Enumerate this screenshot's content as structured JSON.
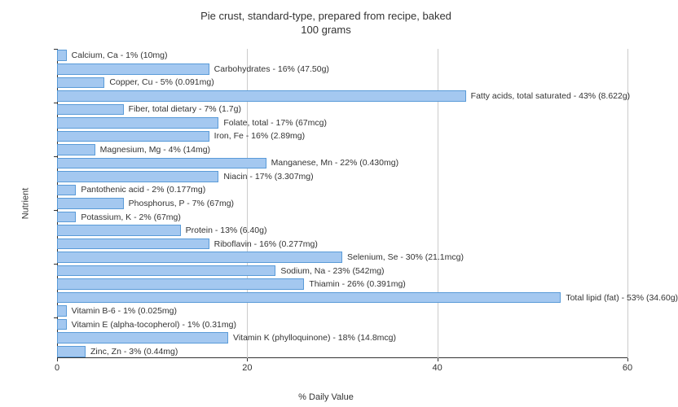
{
  "title_line1": "Pie crust, standard-type, prepared from recipe, baked",
  "title_line2": "100 grams",
  "y_axis_label": "Nutrient",
  "x_axis_label": "% Daily Value",
  "x_ticks": [
    0,
    20,
    40,
    60
  ],
  "x_max": 60,
  "bar_color": "#a4c8f0",
  "bar_border_color": "#5a9bd8",
  "grid_color": "#cccccc",
  "background_color": "#ffffff",
  "label_fontsize": 10.5,
  "title_fontsize": 13,
  "axis_label_fontsize": 11,
  "nutrients": [
    {
      "label": "Calcium, Ca - 1% (10mg)",
      "value": 1
    },
    {
      "label": "Carbohydrates - 16% (47.50g)",
      "value": 16
    },
    {
      "label": "Copper, Cu - 5% (0.091mg)",
      "value": 5
    },
    {
      "label": "Fatty acids, total saturated - 43% (8.622g)",
      "value": 43
    },
    {
      "label": "Fiber, total dietary - 7% (1.7g)",
      "value": 7
    },
    {
      "label": "Folate, total - 17% (67mcg)",
      "value": 17
    },
    {
      "label": "Iron, Fe - 16% (2.89mg)",
      "value": 16
    },
    {
      "label": "Magnesium, Mg - 4% (14mg)",
      "value": 4
    },
    {
      "label": "Manganese, Mn - 22% (0.430mg)",
      "value": 22
    },
    {
      "label": "Niacin - 17% (3.307mg)",
      "value": 17
    },
    {
      "label": "Pantothenic acid - 2% (0.177mg)",
      "value": 2
    },
    {
      "label": "Phosphorus, P - 7% (67mg)",
      "value": 7
    },
    {
      "label": "Potassium, K - 2% (67mg)",
      "value": 2
    },
    {
      "label": "Protein - 13% (6.40g)",
      "value": 13
    },
    {
      "label": "Riboflavin - 16% (0.277mg)",
      "value": 16
    },
    {
      "label": "Selenium, Se - 30% (21.1mcg)",
      "value": 30
    },
    {
      "label": "Sodium, Na - 23% (542mg)",
      "value": 23
    },
    {
      "label": "Thiamin - 26% (0.391mg)",
      "value": 26
    },
    {
      "label": "Total lipid (fat) - 53% (34.60g)",
      "value": 53
    },
    {
      "label": "Vitamin B-6 - 1% (0.025mg)",
      "value": 1
    },
    {
      "label": "Vitamin E (alpha-tocopherol) - 1% (0.31mg)",
      "value": 1
    },
    {
      "label": "Vitamin K (phylloquinone) - 18% (14.8mcg)",
      "value": 18
    },
    {
      "label": "Zinc, Zn - 3% (0.44mg)",
      "value": 3
    }
  ]
}
